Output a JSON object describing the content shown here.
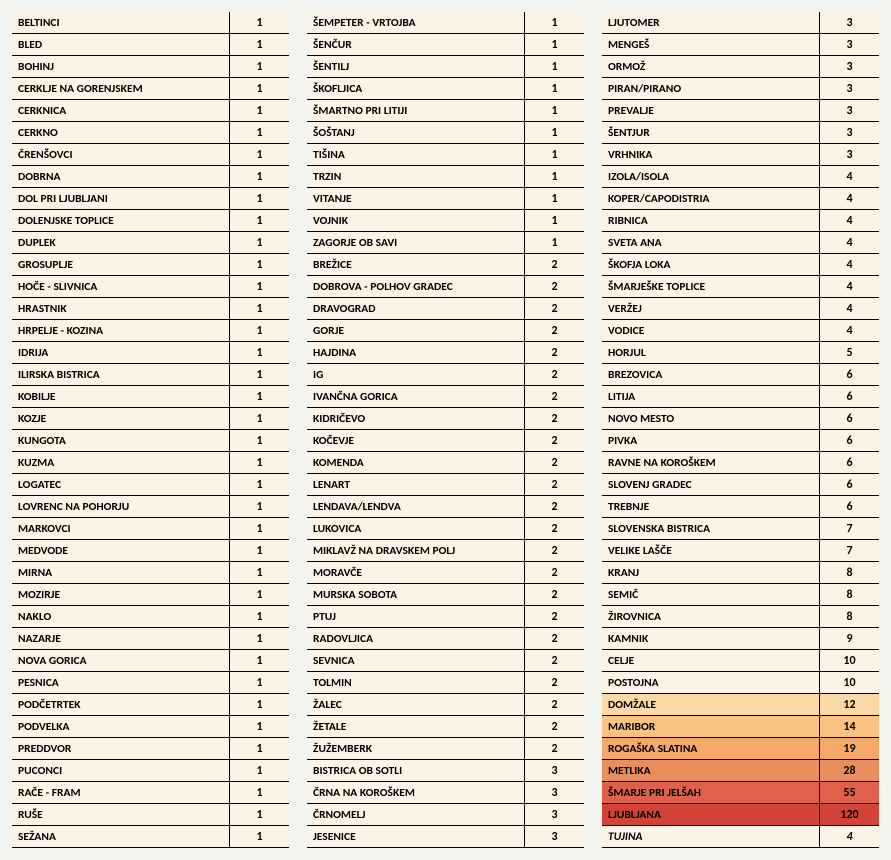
{
  "bg_default": "#fcf3e7",
  "highlight_colors": {
    "h1": "#fbd9a5",
    "h2": "#f8c283",
    "h3": "#f4a86a",
    "h4": "#ea8e5e",
    "h5": "#df614b",
    "h6": "#d24337"
  },
  "columns": [
    {
      "rows": [
        {
          "name": "BELTINCI",
          "value": "1"
        },
        {
          "name": "BLED",
          "value": "1"
        },
        {
          "name": "BOHINJ",
          "value": "1"
        },
        {
          "name": "CERKLJE NA GORENJSKEM",
          "value": "1"
        },
        {
          "name": "CERKNICA",
          "value": "1"
        },
        {
          "name": "CERKNO",
          "value": "1"
        },
        {
          "name": "ČRENŠOVCI",
          "value": "1"
        },
        {
          "name": "DOBRNA",
          "value": "1"
        },
        {
          "name": "DOL PRI LJUBLJANI",
          "value": "1"
        },
        {
          "name": "DOLENJSKE TOPLICE",
          "value": "1"
        },
        {
          "name": "DUPLEK",
          "value": "1"
        },
        {
          "name": "GROSUPLJE",
          "value": "1"
        },
        {
          "name": "HOČE - SLIVNICA",
          "value": "1"
        },
        {
          "name": "HRASTNIK",
          "value": "1"
        },
        {
          "name": "HRPELJE - KOZINA",
          "value": "1"
        },
        {
          "name": "IDRIJA",
          "value": "1"
        },
        {
          "name": "ILIRSKA BISTRICA",
          "value": "1"
        },
        {
          "name": "KOBILJE",
          "value": "1"
        },
        {
          "name": "KOZJE",
          "value": "1"
        },
        {
          "name": "KUNGOTA",
          "value": "1"
        },
        {
          "name": "KUZMA",
          "value": "1"
        },
        {
          "name": "LOGATEC",
          "value": "1"
        },
        {
          "name": "LOVRENC NA POHORJU",
          "value": "1"
        },
        {
          "name": "MARKOVCI",
          "value": "1"
        },
        {
          "name": "MEDVODE",
          "value": "1"
        },
        {
          "name": "MIRNA",
          "value": "1"
        },
        {
          "name": "MOZIRJE",
          "value": "1"
        },
        {
          "name": "NAKLO",
          "value": "1"
        },
        {
          "name": "NAZARJE",
          "value": "1"
        },
        {
          "name": "NOVA GORICA",
          "value": "1"
        },
        {
          "name": "PESNICA",
          "value": "1"
        },
        {
          "name": "PODČETRTEK",
          "value": "1"
        },
        {
          "name": "PODVELKA",
          "value": "1"
        },
        {
          "name": "PREDDVOR",
          "value": "1"
        },
        {
          "name": "PUCONCI",
          "value": "1"
        },
        {
          "name": "RAČE - FRAM",
          "value": "1"
        },
        {
          "name": "RUŠE",
          "value": "1"
        },
        {
          "name": "SEŽANA",
          "value": "1"
        }
      ]
    },
    {
      "rows": [
        {
          "name": "ŠEMPETER - VRTOJBA",
          "value": "1"
        },
        {
          "name": "ŠENČUR",
          "value": "1"
        },
        {
          "name": "ŠENTILJ",
          "value": "1"
        },
        {
          "name": "ŠKOFLJICA",
          "value": "1"
        },
        {
          "name": "ŠMARTNO PRI LITIJI",
          "value": "1"
        },
        {
          "name": "ŠOŠTANJ",
          "value": "1"
        },
        {
          "name": "TIŠINA",
          "value": "1"
        },
        {
          "name": "TRZIN",
          "value": "1"
        },
        {
          "name": "VITANJE",
          "value": "1"
        },
        {
          "name": "VOJNIK",
          "value": "1"
        },
        {
          "name": "ZAGORJE OB SAVI",
          "value": "1"
        },
        {
          "name": "BREŽICE",
          "value": "2"
        },
        {
          "name": "DOBROVA - POLHOV GRADEC",
          "value": "2"
        },
        {
          "name": "DRAVOGRAD",
          "value": "2"
        },
        {
          "name": "GORJE",
          "value": "2"
        },
        {
          "name": "HAJDINA",
          "value": "2"
        },
        {
          "name": "IG",
          "value": "2"
        },
        {
          "name": "IVANČNA GORICA",
          "value": "2"
        },
        {
          "name": "KIDRIČEVO",
          "value": "2"
        },
        {
          "name": "KOČEVJE",
          "value": "2"
        },
        {
          "name": "KOMENDA",
          "value": "2"
        },
        {
          "name": "LENART",
          "value": "2"
        },
        {
          "name": "LENDAVA/LENDVA",
          "value": "2"
        },
        {
          "name": "LUKOVICA",
          "value": "2"
        },
        {
          "name": "MIKLAVŽ NA DRAVSKEM POLJ",
          "value": "2"
        },
        {
          "name": "MORAVČE",
          "value": "2"
        },
        {
          "name": "MURSKA SOBOTA",
          "value": "2"
        },
        {
          "name": "PTUJ",
          "value": "2"
        },
        {
          "name": "RADOVLJICA",
          "value": "2"
        },
        {
          "name": "SEVNICA",
          "value": "2"
        },
        {
          "name": "TOLMIN",
          "value": "2"
        },
        {
          "name": "ŽALEC",
          "value": "2"
        },
        {
          "name": "ŽETALE",
          "value": "2"
        },
        {
          "name": "ŽUŽEMBERK",
          "value": "2"
        },
        {
          "name": "BISTRICA OB SOTLI",
          "value": "3"
        },
        {
          "name": "ČRNA NA KOROŠKEM",
          "value": "3"
        },
        {
          "name": "ČRNOMELJ",
          "value": "3"
        },
        {
          "name": "JESENICE",
          "value": "3"
        }
      ]
    },
    {
      "rows": [
        {
          "name": "LJUTOMER",
          "value": "3"
        },
        {
          "name": "MENGEŠ",
          "value": "3"
        },
        {
          "name": "ORMOŽ",
          "value": "3"
        },
        {
          "name": "PIRAN/PIRANO",
          "value": "3"
        },
        {
          "name": "PREVALJE",
          "value": "3"
        },
        {
          "name": "ŠENTJUR",
          "value": "3"
        },
        {
          "name": "VRHNIKA",
          "value": "3"
        },
        {
          "name": "IZOLA/ISOLA",
          "value": "4"
        },
        {
          "name": "KOPER/CAPODISTRIA",
          "value": "4"
        },
        {
          "name": "RIBNICA",
          "value": "4"
        },
        {
          "name": "SVETA ANA",
          "value": "4"
        },
        {
          "name": "ŠKOFJA LOKA",
          "value": "4"
        },
        {
          "name": "ŠMARJEŠKE TOPLICE",
          "value": "4"
        },
        {
          "name": "VERŽEJ",
          "value": "4"
        },
        {
          "name": "VODICE",
          "value": "4"
        },
        {
          "name": "HORJUL",
          "value": "5"
        },
        {
          "name": "BREZOVICA",
          "value": "6"
        },
        {
          "name": "LITIJA",
          "value": "6"
        },
        {
          "name": "NOVO MESTO",
          "value": "6"
        },
        {
          "name": "PIVKA",
          "value": "6"
        },
        {
          "name": "RAVNE NA KOROŠKEM",
          "value": "6"
        },
        {
          "name": "SLOVENJ GRADEC",
          "value": "6"
        },
        {
          "name": "TREBNJE",
          "value": "6"
        },
        {
          "name": "SLOVENSKA BISTRICA",
          "value": "7"
        },
        {
          "name": "VELIKE LAŠČE",
          "value": "7"
        },
        {
          "name": "KRANJ",
          "value": "8"
        },
        {
          "name": "SEMIČ",
          "value": "8"
        },
        {
          "name": "ŽIROVNICA",
          "value": "8"
        },
        {
          "name": "KAMNIK",
          "value": "9"
        },
        {
          "name": "CELJE",
          "value": "10"
        },
        {
          "name": "POSTOJNA",
          "value": "10"
        },
        {
          "name": "DOMŽALE",
          "value": "12",
          "bg": "h1"
        },
        {
          "name": "MARIBOR",
          "value": "14",
          "bg": "h2"
        },
        {
          "name": "ROGAŠKA SLATINA",
          "value": "19",
          "bg": "h3"
        },
        {
          "name": "METLIKA",
          "value": "28",
          "bg": "h4"
        },
        {
          "name": "ŠMARJE PRI JELŠAH",
          "value": "55",
          "bg": "h5"
        },
        {
          "name": "LJUBLJANA",
          "value": "120",
          "bg": "h6"
        },
        {
          "name": "TUJINA",
          "value": "4",
          "italic": true
        }
      ]
    }
  ]
}
